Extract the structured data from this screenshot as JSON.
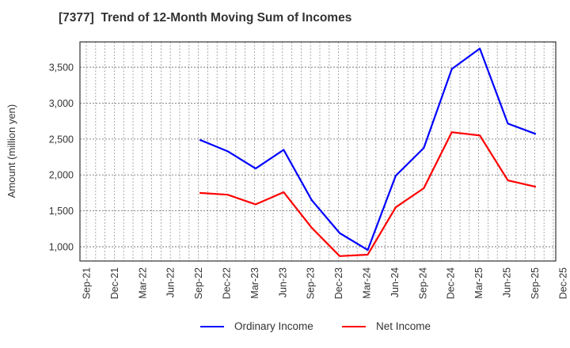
{
  "chart_data": {
    "type": "line",
    "title": "[7377]  Trend of 12-Month Moving Sum of Incomes",
    "xlabel": "",
    "ylabel": "Amount (million yen)",
    "ylim": [
      800,
      3850
    ],
    "yticks": [
      1000,
      1500,
      2000,
      2500,
      3000,
      3500
    ],
    "ytick_labels": [
      "1,000",
      "1,500",
      "2,000",
      "2,500",
      "3,000",
      "3,500"
    ],
    "x_tick_labels": [
      "Sep-21",
      "Dec-21",
      "Mar-22",
      "Jun-22",
      "Sep-22",
      "Dec-22",
      "Mar-23",
      "Jun-23",
      "Sep-23",
      "Dec-23",
      "Mar-24",
      "Jun-24",
      "Sep-24",
      "Dec-24",
      "Mar-25",
      "Jun-25",
      "Sep-25",
      "Dec-25"
    ],
    "grid": true,
    "legend_position": "bottom",
    "categories": [
      "Sep-22",
      "Dec-22",
      "Mar-23",
      "Jun-23",
      "Sep-23",
      "Dec-23",
      "Mar-24",
      "Jun-24",
      "Sep-24",
      "Dec-24",
      "Mar-25",
      "Jun-25",
      "Sep-25"
    ],
    "series": [
      {
        "name": "Ordinary Income",
        "color": "#0000ff",
        "values": [
          2490,
          2330,
          2090,
          2350,
          1650,
          1190,
          955,
          1990,
          2375,
          3475,
          3760,
          2715,
          2570
        ]
      },
      {
        "name": "Net Income",
        "color": "#ff0000",
        "values": [
          1750,
          1725,
          1590,
          1760,
          1265,
          870,
          890,
          1550,
          1815,
          2595,
          2550,
          1925,
          1835
        ]
      }
    ]
  },
  "legend": {
    "items": [
      {
        "label": "Ordinary Income",
        "color": "#0000ff"
      },
      {
        "label": "Net Income",
        "color": "#ff0000"
      }
    ]
  }
}
